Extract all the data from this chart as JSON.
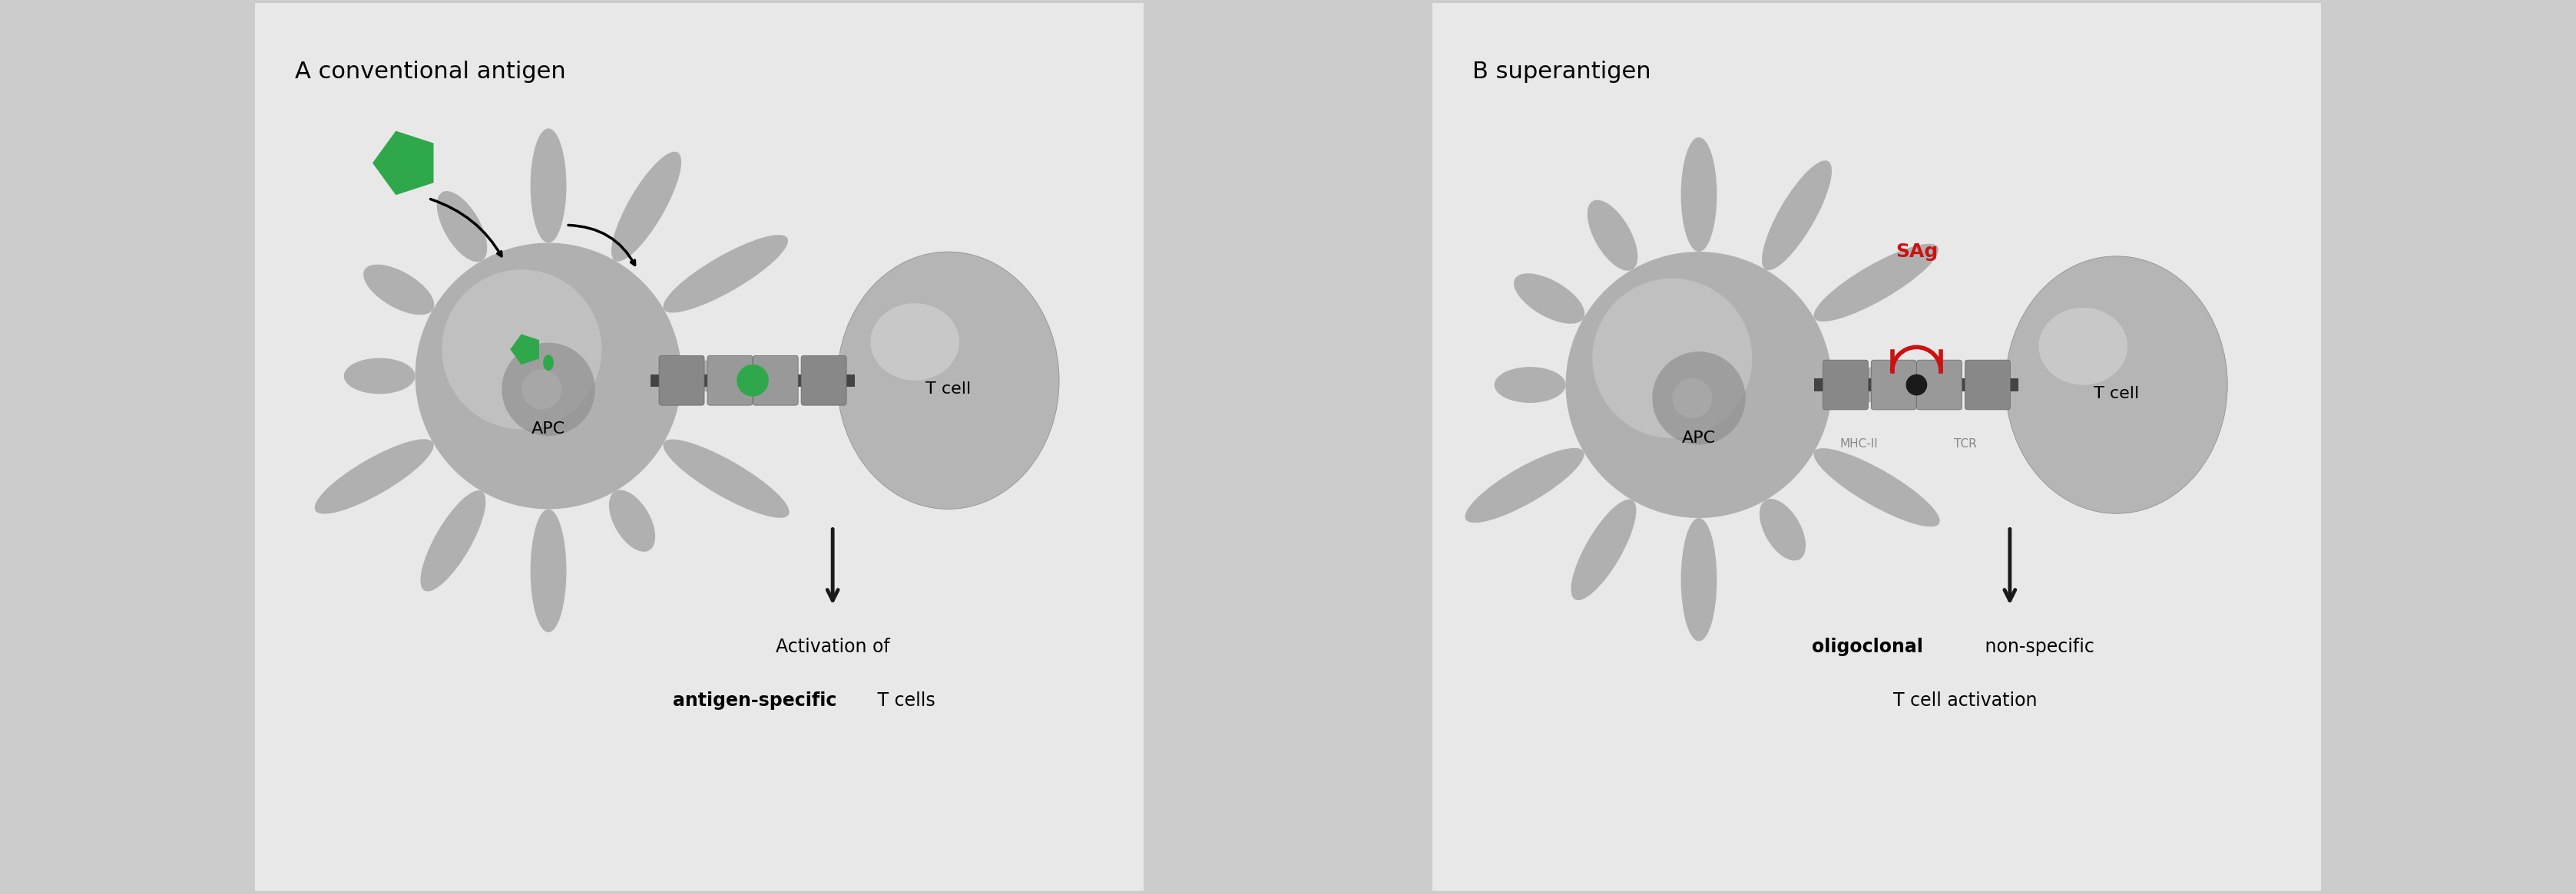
{
  "fig_width": 33.54,
  "fig_height": 11.65,
  "bg_color": "#e8e8e8",
  "panel_bg_left": "#e8e8e8",
  "panel_bg_right": "#e8e8e8",
  "panel_A_title": "A conventional antigen",
  "panel_B_title": "B superantigen",
  "cell_color_main": "#b0b0b0",
  "cell_color_light": "#d8d8d8",
  "cell_color_highlight": "#c8c8c8",
  "green_color": "#2ea84a",
  "red_color": "#cc1111",
  "dark_gray": "#555555",
  "arrow_color": "#1a1a1a",
  "label_A_line1": "Activation of",
  "label_A_line2_bold": "antigen-specific",
  "label_A_line2_normal": " T cells",
  "label_B_line1_bold": "oligoclonal",
  "label_B_line1_normal": " non-specific",
  "label_B_line2": "T cell activation",
  "MHC_label": "MHC-II",
  "TCR_label": "TCR",
  "SAg_label": "SAg",
  "APC_label": "APC",
  "Tcell_label": "T cell"
}
